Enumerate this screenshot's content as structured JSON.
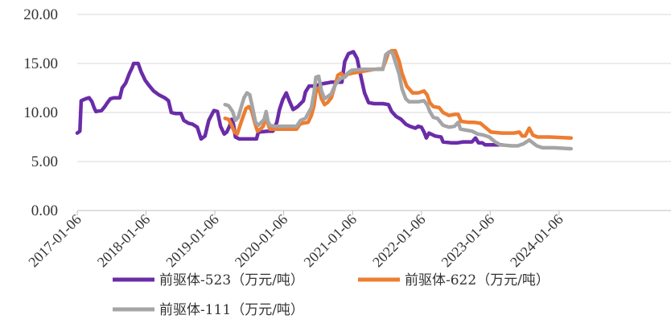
{
  "chart_data": {
    "type": "line",
    "title": "",
    "xlabel": "",
    "ylabel": "",
    "ylim": [
      0,
      20
    ],
    "xlim": [
      "2017-01-06",
      "2025-08-22"
    ],
    "y_ticks": [
      "0.00",
      "5.00",
      "10.00",
      "15.00",
      "20.00"
    ],
    "x_ticks": [
      "2017-01-06",
      "2018-01-06",
      "2019-01-06",
      "2020-01-06",
      "2021-01-06",
      "2022-01-06",
      "2023-01-06",
      "2024-01-06"
    ],
    "grid": "horizontal",
    "legend_position": "bottom",
    "colors": {
      "purple": "#6A2CA8",
      "orange": "#ED7D31",
      "gray": "#A5A5A5"
    },
    "series": [
      {
        "name": "前驱体-523（万元/吨）",
        "color": "#6A2CA8",
        "points": [
          [
            "2017-01-06",
            7.9
          ],
          [
            "2017-01-20",
            8.1
          ],
          [
            "2017-01-27",
            11.2
          ],
          [
            "2017-02-20",
            11.4
          ],
          [
            "2017-03-10",
            11.5
          ],
          [
            "2017-03-25",
            11.1
          ],
          [
            "2017-04-05",
            10.5
          ],
          [
            "2017-04-15",
            10.1
          ],
          [
            "2017-05-15",
            10.2
          ],
          [
            "2017-06-01",
            10.6
          ],
          [
            "2017-06-15",
            11.0
          ],
          [
            "2017-07-01",
            11.4
          ],
          [
            "2017-07-20",
            11.5
          ],
          [
            "2017-08-20",
            11.5
          ],
          [
            "2017-09-01",
            12.5
          ],
          [
            "2017-09-20",
            13.0
          ],
          [
            "2017-10-10",
            14.0
          ],
          [
            "2017-10-25",
            14.6
          ],
          [
            "2017-11-01",
            15.0
          ],
          [
            "2017-11-25",
            15.0
          ],
          [
            "2017-12-10",
            14.2
          ],
          [
            "2018-01-01",
            13.3
          ],
          [
            "2018-01-20",
            12.8
          ],
          [
            "2018-02-15",
            12.2
          ],
          [
            "2018-03-15",
            11.8
          ],
          [
            "2018-04-15",
            11.5
          ],
          [
            "2018-05-05",
            11.2
          ],
          [
            "2018-05-20",
            10.0
          ],
          [
            "2018-06-10",
            9.9
          ],
          [
            "2018-07-10",
            9.9
          ],
          [
            "2018-07-25",
            9.2
          ],
          [
            "2018-08-20",
            8.9
          ],
          [
            "2018-09-10",
            8.8
          ],
          [
            "2018-10-05",
            8.5
          ],
          [
            "2018-10-25",
            7.3
          ],
          [
            "2018-11-15",
            7.6
          ],
          [
            "2018-12-05",
            9.2
          ],
          [
            "2019-01-01",
            10.2
          ],
          [
            "2019-01-20",
            10.1
          ],
          [
            "2019-02-05",
            8.6
          ],
          [
            "2019-02-25",
            7.8
          ],
          [
            "2019-03-10",
            8.0
          ],
          [
            "2019-03-25",
            8.6
          ],
          [
            "2019-04-05",
            9.3
          ],
          [
            "2019-04-15",
            8.8
          ],
          [
            "2019-04-25",
            7.5
          ],
          [
            "2019-05-15",
            7.3
          ],
          [
            "2019-07-15",
            7.3
          ],
          [
            "2019-08-15",
            7.3
          ],
          [
            "2019-08-25",
            8.0
          ],
          [
            "2019-10-15",
            8.1
          ],
          [
            "2019-11-10",
            8.1
          ],
          [
            "2019-12-01",
            9.0
          ],
          [
            "2019-12-15",
            10.3
          ],
          [
            "2020-01-01",
            11.3
          ],
          [
            "2020-01-20",
            12.0
          ],
          [
            "2020-02-05",
            11.2
          ],
          [
            "2020-02-25",
            10.3
          ],
          [
            "2020-03-20",
            10.6
          ],
          [
            "2020-04-20",
            11.2
          ],
          [
            "2020-05-01",
            12.1
          ],
          [
            "2020-05-20",
            12.7
          ],
          [
            "2020-06-20",
            12.7
          ],
          [
            "2020-07-20",
            12.9
          ],
          [
            "2020-08-20",
            13.0
          ],
          [
            "2020-09-15",
            13.1
          ],
          [
            "2020-10-15",
            13.1
          ],
          [
            "2020-11-10",
            13.1
          ],
          [
            "2020-11-25",
            15.2
          ],
          [
            "2020-12-15",
            16.0
          ],
          [
            "2021-01-10",
            16.2
          ],
          [
            "2021-01-30",
            15.5
          ],
          [
            "2021-02-15",
            14.0
          ],
          [
            "2021-03-10",
            12.0
          ],
          [
            "2021-04-01",
            11.0
          ],
          [
            "2021-05-01",
            10.9
          ],
          [
            "2021-06-15",
            10.9
          ],
          [
            "2021-07-15",
            10.8
          ],
          [
            "2021-08-01",
            10.1
          ],
          [
            "2021-08-25",
            9.6
          ],
          [
            "2021-09-20",
            9.3
          ],
          [
            "2021-10-15",
            8.8
          ],
          [
            "2021-11-05",
            8.6
          ],
          [
            "2021-12-05",
            8.4
          ],
          [
            "2021-12-20",
            8.6
          ],
          [
            "2022-01-06",
            8.5
          ],
          [
            "2022-01-20",
            8.0
          ],
          [
            "2022-02-01",
            7.4
          ],
          [
            "2022-02-15",
            7.9
          ],
          [
            "2022-03-20",
            7.6
          ],
          [
            "2022-04-20",
            7.5
          ],
          [
            "2022-05-01",
            7.0
          ],
          [
            "2022-06-15",
            6.9
          ],
          [
            "2022-07-15",
            6.9
          ],
          [
            "2022-08-15",
            7.0
          ],
          [
            "2022-09-15",
            7.0
          ],
          [
            "2022-10-01",
            7.0
          ],
          [
            "2022-10-20",
            7.4
          ],
          [
            "2022-11-05",
            6.9
          ],
          [
            "2022-11-25",
            6.9
          ],
          [
            "2022-12-10",
            6.7
          ],
          [
            "2023-02-10",
            6.7
          ],
          [
            "2023-03-10",
            6.7
          ]
        ]
      },
      {
        "name": "前驱体-622（万元/吨）",
        "color": "#ED7D31",
        "points": [
          [
            "2019-03-01",
            9.4
          ],
          [
            "2019-03-20",
            9.3
          ],
          [
            "2019-04-05",
            8.7
          ],
          [
            "2019-04-20",
            8.0
          ],
          [
            "2019-05-05",
            7.8
          ],
          [
            "2019-05-20",
            8.7
          ],
          [
            "2019-06-05",
            9.6
          ],
          [
            "2019-06-20",
            10.4
          ],
          [
            "2019-07-05",
            10.6
          ],
          [
            "2019-07-20",
            10.2
          ],
          [
            "2019-08-05",
            9.0
          ],
          [
            "2019-08-20",
            8.1
          ],
          [
            "2019-09-05",
            8.3
          ],
          [
            "2019-09-20",
            8.6
          ],
          [
            "2019-10-05",
            9.7
          ],
          [
            "2019-10-15",
            8.8
          ],
          [
            "2019-10-25",
            8.3
          ],
          [
            "2019-11-15",
            8.3
          ],
          [
            "2020-03-15",
            8.3
          ],
          [
            "2020-04-01",
            8.8
          ],
          [
            "2020-04-15",
            8.9
          ],
          [
            "2020-05-15",
            9.0
          ],
          [
            "2020-06-01",
            9.7
          ],
          [
            "2020-06-15",
            10.7
          ],
          [
            "2020-06-25",
            12.1
          ],
          [
            "2020-07-10",
            12.5
          ],
          [
            "2020-07-25",
            11.4
          ],
          [
            "2020-08-10",
            10.8
          ],
          [
            "2020-08-25",
            11.0
          ],
          [
            "2020-09-15",
            11.5
          ],
          [
            "2020-10-05",
            12.8
          ],
          [
            "2020-10-20",
            13.8
          ],
          [
            "2020-11-05",
            14.0
          ],
          [
            "2020-11-25",
            13.6
          ],
          [
            "2020-12-10",
            13.9
          ],
          [
            "2021-01-01",
            14.0
          ],
          [
            "2021-03-01",
            14.2
          ],
          [
            "2021-05-01",
            14.4
          ],
          [
            "2021-06-15",
            14.5
          ],
          [
            "2021-07-01",
            15.3
          ],
          [
            "2021-07-15",
            16.1
          ],
          [
            "2021-08-01",
            16.3
          ],
          [
            "2021-08-20",
            16.3
          ],
          [
            "2021-09-10",
            15.2
          ],
          [
            "2021-09-25",
            14.0
          ],
          [
            "2021-10-20",
            12.7
          ],
          [
            "2021-11-20",
            12.0
          ],
          [
            "2021-12-20",
            12.0
          ],
          [
            "2022-01-20",
            12.2
          ],
          [
            "2022-02-05",
            11.8
          ],
          [
            "2022-02-20",
            11.0
          ],
          [
            "2022-03-10",
            10.6
          ],
          [
            "2022-04-10",
            10.5
          ],
          [
            "2022-05-01",
            10.0
          ],
          [
            "2022-06-01",
            9.7
          ],
          [
            "2022-07-01",
            9.8
          ],
          [
            "2022-07-20",
            9.8
          ],
          [
            "2022-08-05",
            9.1
          ],
          [
            "2022-09-10",
            9.0
          ],
          [
            "2022-10-10",
            9.0
          ],
          [
            "2022-11-15",
            8.9
          ],
          [
            "2022-12-10",
            8.5
          ],
          [
            "2023-01-10",
            8.0
          ],
          [
            "2023-03-10",
            7.9
          ],
          [
            "2023-05-10",
            7.9
          ],
          [
            "2023-06-10",
            8.0
          ],
          [
            "2023-06-25",
            7.6
          ],
          [
            "2023-07-10",
            7.6
          ],
          [
            "2023-08-01",
            8.4
          ],
          [
            "2023-08-20",
            7.7
          ],
          [
            "2023-09-15",
            7.5
          ],
          [
            "2023-11-15",
            7.5
          ],
          [
            "2024-03-10",
            7.4
          ]
        ]
      },
      {
        "name": "前驱体-111（万元/吨）",
        "color": "#A5A5A5",
        "points": [
          [
            "2019-03-01",
            10.8
          ],
          [
            "2019-03-20",
            10.7
          ],
          [
            "2019-04-10",
            10.1
          ],
          [
            "2019-04-25",
            9.2
          ],
          [
            "2019-05-10",
            9.5
          ],
          [
            "2019-05-25",
            10.5
          ],
          [
            "2019-06-10",
            11.5
          ],
          [
            "2019-06-25",
            12.0
          ],
          [
            "2019-07-10",
            11.8
          ],
          [
            "2019-07-25",
            10.5
          ],
          [
            "2019-08-10",
            9.0
          ],
          [
            "2019-08-25",
            8.7
          ],
          [
            "2019-09-10",
            9.0
          ],
          [
            "2019-09-25",
            9.3
          ],
          [
            "2019-10-05",
            10.1
          ],
          [
            "2019-10-15",
            9.1
          ],
          [
            "2019-10-25",
            8.7
          ],
          [
            "2019-11-15",
            8.6
          ],
          [
            "2020-03-15",
            8.6
          ],
          [
            "2020-04-05",
            9.2
          ],
          [
            "2020-05-01",
            9.4
          ],
          [
            "2020-06-01",
            10.5
          ],
          [
            "2020-06-15",
            12.0
          ],
          [
            "2020-06-25",
            13.6
          ],
          [
            "2020-07-10",
            13.7
          ],
          [
            "2020-07-25",
            12.2
          ],
          [
            "2020-08-10",
            11.4
          ],
          [
            "2020-08-25",
            11.6
          ],
          [
            "2020-09-15",
            11.9
          ],
          [
            "2020-10-05",
            12.8
          ],
          [
            "2020-10-20",
            13.2
          ],
          [
            "2020-11-05",
            13.5
          ],
          [
            "2020-11-25",
            13.6
          ],
          [
            "2020-12-10",
            14.0
          ],
          [
            "2021-01-01",
            14.3
          ],
          [
            "2021-03-01",
            14.4
          ],
          [
            "2021-06-15",
            14.4
          ],
          [
            "2021-07-01",
            15.9
          ],
          [
            "2021-07-20",
            16.2
          ],
          [
            "2021-08-05",
            16.1
          ],
          [
            "2021-08-20",
            15.2
          ],
          [
            "2021-09-10",
            13.9
          ],
          [
            "2021-09-25",
            12.4
          ],
          [
            "2021-10-15",
            11.4
          ],
          [
            "2021-11-01",
            11.1
          ],
          [
            "2021-12-20",
            11.1
          ],
          [
            "2022-01-20",
            11.2
          ],
          [
            "2022-02-05",
            10.8
          ],
          [
            "2022-02-20",
            10.1
          ],
          [
            "2022-03-10",
            9.5
          ],
          [
            "2022-04-01",
            9.4
          ],
          [
            "2022-05-01",
            8.7
          ],
          [
            "2022-06-01",
            8.5
          ],
          [
            "2022-07-01",
            8.6
          ],
          [
            "2022-07-20",
            9.0
          ],
          [
            "2022-08-01",
            8.3
          ],
          [
            "2022-09-01",
            8.2
          ],
          [
            "2022-10-01",
            8.1
          ],
          [
            "2022-11-01",
            7.8
          ],
          [
            "2022-12-01",
            7.7
          ],
          [
            "2023-01-01",
            7.5
          ],
          [
            "2023-02-01",
            7.0
          ],
          [
            "2023-03-01",
            6.7
          ],
          [
            "2023-05-01",
            6.6
          ],
          [
            "2023-06-01",
            6.6
          ],
          [
            "2023-07-01",
            6.8
          ],
          [
            "2023-08-01",
            7.2
          ],
          [
            "2023-08-20",
            6.9
          ],
          [
            "2023-09-10",
            6.6
          ],
          [
            "2023-10-10",
            6.4
          ],
          [
            "2023-12-10",
            6.4
          ],
          [
            "2024-03-10",
            6.3
          ]
        ]
      }
    ]
  }
}
